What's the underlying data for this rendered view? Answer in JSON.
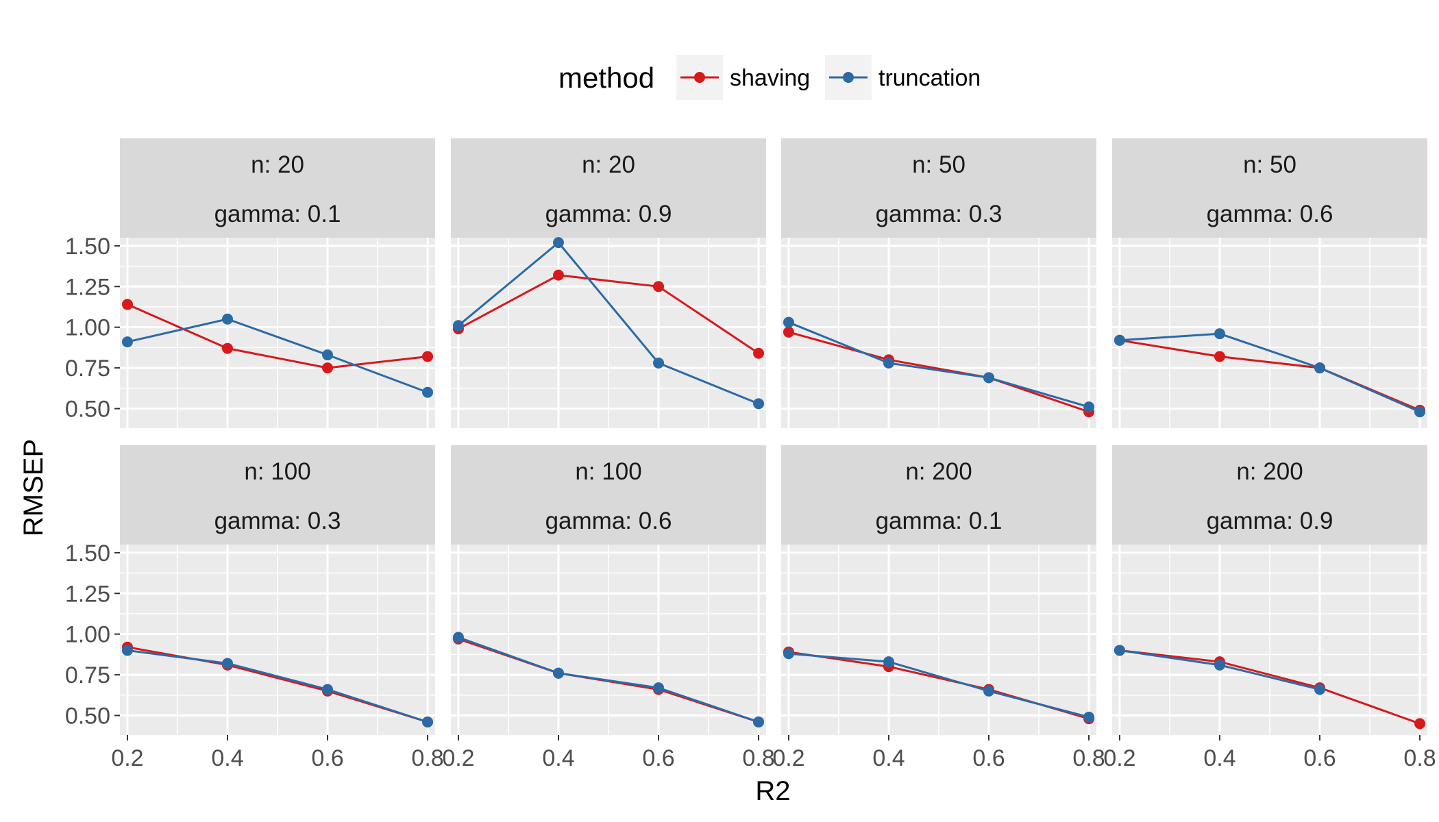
{
  "chart_data": {
    "type": "line",
    "xlabel": "R2",
    "ylabel": "RMSEP",
    "x": [
      0.2,
      0.4,
      0.6,
      0.8
    ],
    "xticks": [
      "0.2",
      "0.4",
      "0.6",
      "0.8"
    ],
    "ylim": [
      0.38,
      1.55
    ],
    "yticks": [
      "0.50",
      "0.75",
      "1.00",
      "1.25",
      "1.50"
    ],
    "grid": true,
    "legend": {
      "title": "method",
      "position": "top",
      "entries": [
        {
          "name": "shaving",
          "color": "#d7191c"
        },
        {
          "name": "truncation",
          "color": "#2c6aa6"
        }
      ]
    },
    "panels": [
      {
        "strip": [
          "n: 20",
          "gamma: 0.1"
        ],
        "series": [
          {
            "name": "shaving",
            "values": [
              1.14,
              0.87,
              0.75,
              0.82
            ]
          },
          {
            "name": "truncation",
            "values": [
              0.91,
              1.05,
              0.83,
              0.6
            ]
          }
        ]
      },
      {
        "strip": [
          "n: 20",
          "gamma: 0.9"
        ],
        "series": [
          {
            "name": "shaving",
            "values": [
              0.99,
              1.32,
              1.25,
              0.84
            ]
          },
          {
            "name": "truncation",
            "values": [
              1.01,
              1.52,
              0.78,
              0.53
            ]
          }
        ]
      },
      {
        "strip": [
          "n: 50",
          "gamma: 0.3"
        ],
        "series": [
          {
            "name": "shaving",
            "values": [
              0.97,
              0.8,
              0.69,
              0.48
            ]
          },
          {
            "name": "truncation",
            "values": [
              1.03,
              0.78,
              0.69,
              0.51
            ]
          }
        ]
      },
      {
        "strip": [
          "n: 50",
          "gamma: 0.6"
        ],
        "series": [
          {
            "name": "shaving",
            "values": [
              0.92,
              0.82,
              0.75,
              0.49
            ]
          },
          {
            "name": "truncation",
            "values": [
              0.92,
              0.96,
              0.75,
              0.48
            ]
          }
        ]
      },
      {
        "strip": [
          "n: 100",
          "gamma: 0.3"
        ],
        "series": [
          {
            "name": "shaving",
            "values": [
              0.92,
              0.81,
              0.65,
              0.46
            ]
          },
          {
            "name": "truncation",
            "values": [
              0.9,
              0.82,
              0.66,
              0.46
            ]
          }
        ]
      },
      {
        "strip": [
          "n: 100",
          "gamma: 0.6"
        ],
        "series": [
          {
            "name": "shaving",
            "values": [
              0.97,
              0.76,
              0.66,
              0.46
            ]
          },
          {
            "name": "truncation",
            "values": [
              0.98,
              0.76,
              0.67,
              0.46
            ]
          }
        ]
      },
      {
        "strip": [
          "n: 200",
          "gamma: 0.1"
        ],
        "series": [
          {
            "name": "shaving",
            "values": [
              0.89,
              0.8,
              0.66,
              0.48
            ]
          },
          {
            "name": "truncation",
            "values": [
              0.88,
              0.83,
              0.65,
              0.49
            ]
          }
        ]
      },
      {
        "strip": [
          "n: 200",
          "gamma: 0.9"
        ],
        "series": [
          {
            "name": "shaving",
            "values": [
              0.9,
              0.83,
              0.67,
              0.45
            ]
          },
          {
            "name": "truncation",
            "values": [
              0.9,
              0.81,
              0.66,
              null
            ]
          }
        ]
      }
    ]
  }
}
